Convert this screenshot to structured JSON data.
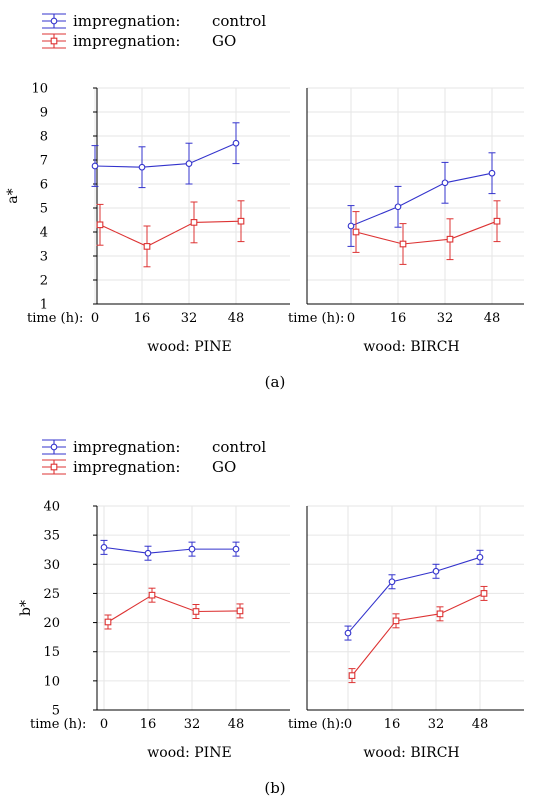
{
  "figure_labels": {
    "a": "(a)",
    "b": "(b)"
  },
  "legend": {
    "prefix": "impregnation:",
    "items": [
      {
        "name": "control",
        "color": "#3333cc",
        "marker": "circle"
      },
      {
        "name": "GO",
        "color": "#dd3333",
        "marker": "square"
      }
    ]
  },
  "chart_data": [
    {
      "type": "line",
      "id": "a",
      "ylabel": "a*",
      "ylim": [
        1,
        10
      ],
      "yticks": [
        1,
        2,
        3,
        4,
        5,
        6,
        7,
        8,
        9,
        10
      ],
      "x_axis_label": "time (h):",
      "x": [
        0,
        16,
        32,
        48
      ],
      "panels": [
        {
          "title": "wood: PINE",
          "series": [
            {
              "name": "control",
              "values": [
                6.75,
                6.7,
                6.85,
                7.7
              ],
              "err": [
                0.85,
                0.85,
                0.85,
                0.85
              ]
            },
            {
              "name": "GO",
              "values": [
                4.3,
                3.4,
                4.4,
                4.45
              ],
              "err": [
                0.85,
                0.85,
                0.85,
                0.85
              ]
            }
          ]
        },
        {
          "title": "wood: BIRCH",
          "series": [
            {
              "name": "control",
              "values": [
                4.25,
                5.05,
                6.05,
                6.45
              ],
              "err": [
                0.85,
                0.85,
                0.85,
                0.85
              ]
            },
            {
              "name": "GO",
              "values": [
                4.0,
                3.5,
                3.7,
                4.45
              ],
              "err": [
                0.85,
                0.85,
                0.85,
                0.85
              ]
            }
          ]
        }
      ]
    },
    {
      "type": "line",
      "id": "b",
      "ylabel": "b*",
      "ylim": [
        5,
        40
      ],
      "yticks": [
        5,
        10,
        15,
        20,
        25,
        30,
        35,
        40
      ],
      "x_axis_label": "time (h):",
      "x": [
        0,
        16,
        32,
        48
      ],
      "panels": [
        {
          "title": "wood: PINE",
          "series": [
            {
              "name": "control",
              "values": [
                32.9,
                31.9,
                32.6,
                32.6
              ],
              "err": [
                1.2,
                1.2,
                1.2,
                1.2
              ]
            },
            {
              "name": "GO",
              "values": [
                20.1,
                24.7,
                21.9,
                22.0
              ],
              "err": [
                1.2,
                1.2,
                1.2,
                1.2
              ]
            }
          ]
        },
        {
          "title": "wood: BIRCH",
          "series": [
            {
              "name": "control",
              "values": [
                18.2,
                27.0,
                28.8,
                31.2
              ],
              "err": [
                1.2,
                1.2,
                1.2,
                1.2
              ]
            },
            {
              "name": "GO",
              "values": [
                10.9,
                20.3,
                21.5,
                25.0
              ],
              "err": [
                1.2,
                1.2,
                1.2,
                1.2
              ]
            }
          ]
        }
      ]
    }
  ]
}
